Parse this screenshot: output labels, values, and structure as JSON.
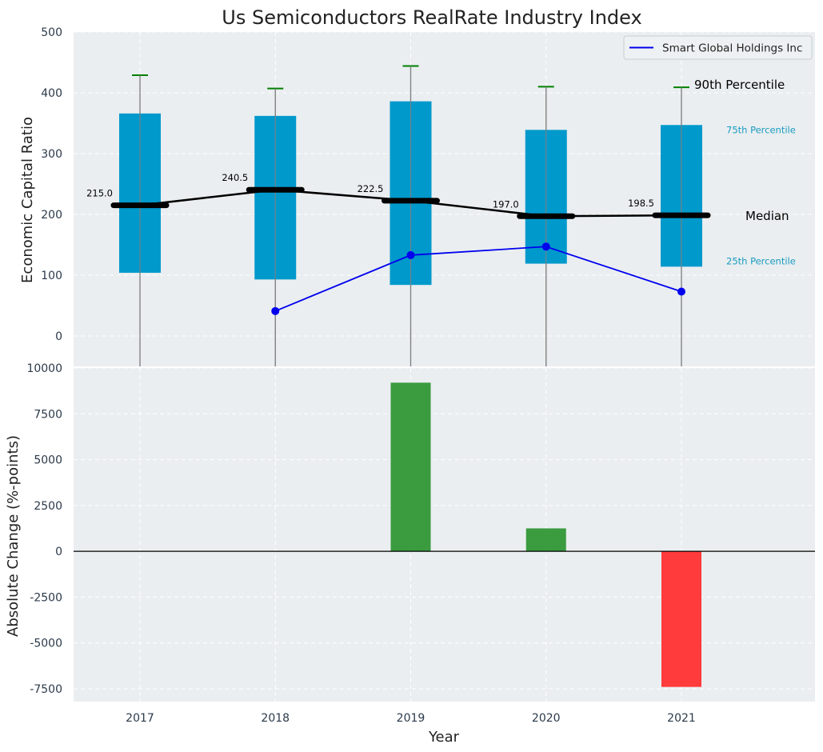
{
  "chart_data": [
    {
      "type": "box",
      "title": "Us Semiconductors RealRate Industry Index",
      "xlabel": "",
      "ylabel": "Economic Capital Ratio",
      "ylim": [
        -50,
        500
      ],
      "yticks": [
        0,
        100,
        200,
        300,
        400,
        500
      ],
      "grid": true,
      "legend_position": "top-right",
      "categories": [
        "2017",
        "2018",
        "2019",
        "2020",
        "2021"
      ],
      "p25": [
        104,
        93,
        84,
        119,
        114
      ],
      "p75": [
        366,
        362,
        386,
        339,
        347
      ],
      "p90": [
        429,
        407,
        444,
        410,
        409
      ],
      "median": [
        215.0,
        240.5,
        222.5,
        197.0,
        198.5
      ],
      "median_labels": [
        "215.0",
        "240.5",
        "222.5",
        "197.0",
        "198.5"
      ],
      "series": [
        {
          "name": "Smart Global Holdings Inc",
          "values": [
            null,
            41,
            133,
            147,
            73
          ]
        }
      ],
      "annotations": {
        "p90": "90th Percentile",
        "p75": "75th Percentile",
        "median": "Median",
        "p25": "25th Percentile"
      }
    },
    {
      "type": "bar",
      "xlabel": "Year",
      "ylabel": "Absolute Change (%-points)",
      "ylim": [
        -8200,
        10000
      ],
      "yticks": [
        -7500,
        -5000,
        -2500,
        0,
        2500,
        5000,
        7500,
        10000
      ],
      "grid": true,
      "categories": [
        "2017",
        "2018",
        "2019",
        "2020",
        "2021"
      ],
      "values": [
        0,
        0,
        9200,
        1250,
        -7400
      ]
    }
  ],
  "colors": {
    "box": "#0099cc",
    "whisker": "#808080",
    "cap": "#008000",
    "median": "#000000",
    "series": "#0000ee",
    "positive": "#3a9b3f",
    "negative": "#ff3b3b",
    "axes_bg": "#eaeef0",
    "label": "#2b3a4a",
    "pct_label": "#1a9bc0"
  }
}
